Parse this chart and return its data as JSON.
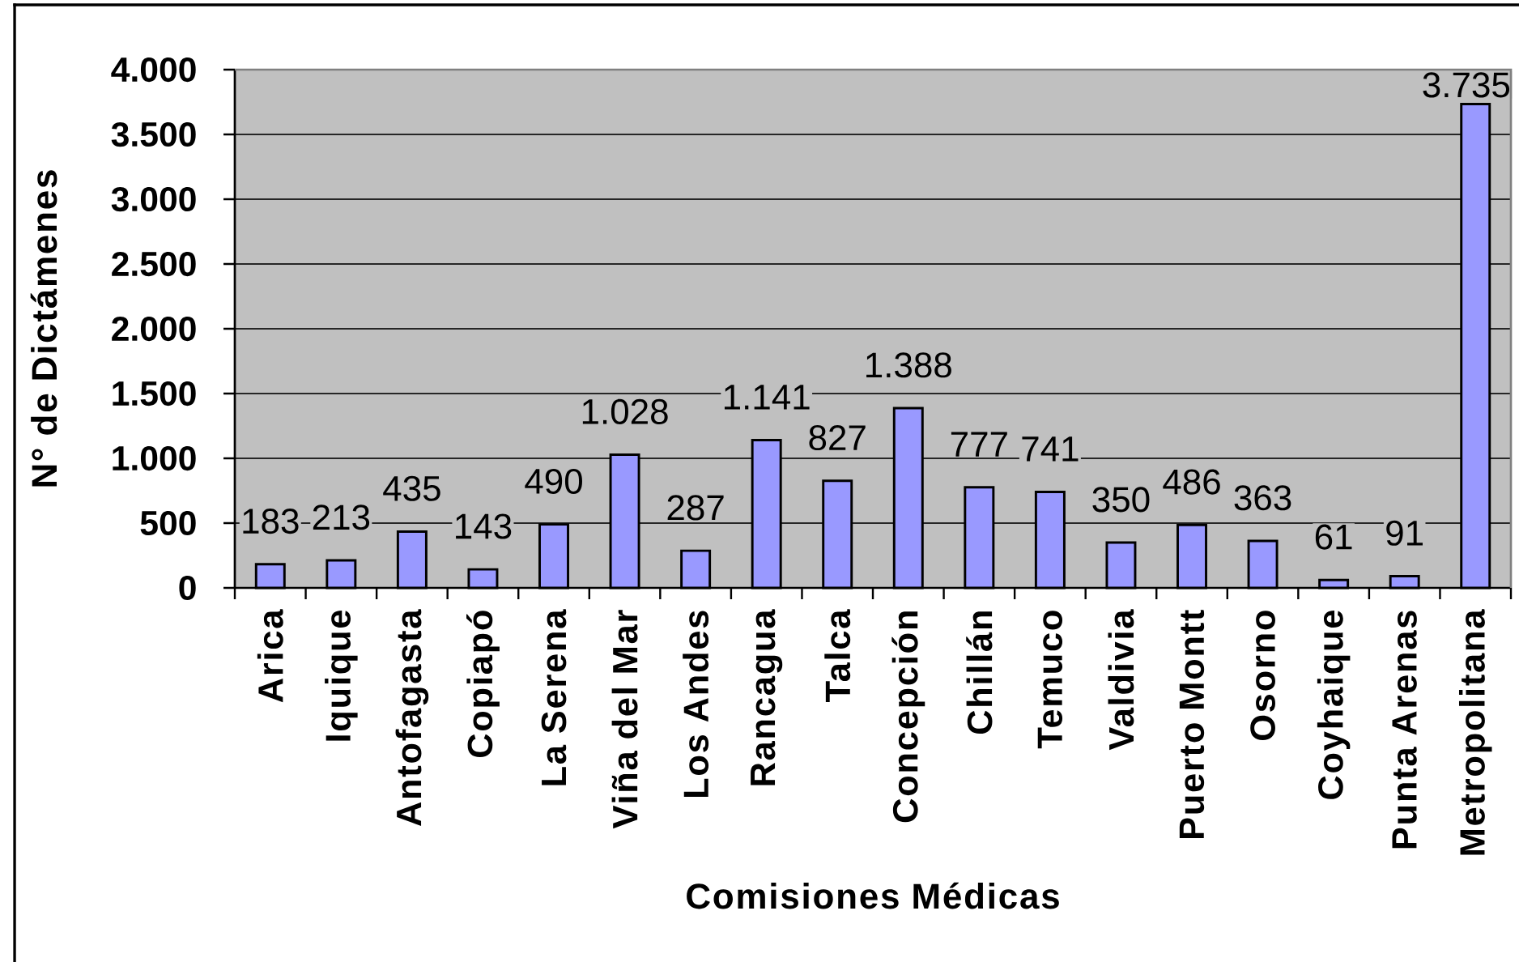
{
  "chart_data": {
    "type": "bar",
    "xlabel": "Comisiones Médicas",
    "ylabel": "N° de Dictámenes",
    "categories": [
      "Arica",
      "Iquique",
      "Antofagasta",
      "Copiapó",
      "La Serena",
      "Viña del Mar",
      "Los Andes",
      "Rancagua",
      "Talca",
      "Concepción",
      "Chillán",
      "Temuco",
      "Valdivia",
      "Puerto Montt",
      "Osorno",
      "Coyhaique",
      "Punta Arenas",
      "Metropolitana"
    ],
    "values": [
      183,
      213,
      435,
      143,
      490,
      1028,
      287,
      1141,
      827,
      1388,
      777,
      741,
      350,
      486,
      363,
      61,
      91,
      3735
    ],
    "value_labels": [
      "183",
      "213",
      "435",
      "143",
      "490",
      "1.028",
      "287",
      "1.141",
      "827",
      "1.388",
      "777",
      "741",
      "350",
      "486",
      "363",
      "61",
      "91",
      "3.735"
    ],
    "color": "#9999ff",
    "ylim": [
      0,
      4000
    ],
    "yticks": [
      0,
      500,
      {
        "value": 1000,
        "label": "1.000"
      },
      {
        "value": 1500,
        "label": "1.500"
      },
      {
        "value": 2000,
        "label": "2.000"
      },
      {
        "value": 2500,
        "label": "2.500"
      },
      {
        "value": 3000,
        "label": "3.000"
      },
      {
        "value": 3500,
        "label": "3.500"
      },
      {
        "value": 4000,
        "label": "4.000"
      }
    ],
    "grid": "y"
  }
}
